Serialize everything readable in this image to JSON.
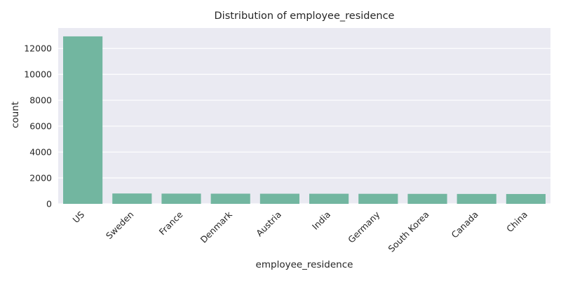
{
  "chart_data": {
    "type": "bar",
    "title": "Distribution of employee_residence",
    "xlabel": "employee_residence",
    "ylabel": "count",
    "categories": [
      "US",
      "Sweden",
      "France",
      "Denmark",
      "Austria",
      "India",
      "Germany",
      "South Korea",
      "Canada",
      "China"
    ],
    "values": [
      12930,
      800,
      790,
      785,
      782,
      780,
      775,
      770,
      765,
      760
    ],
    "ylim": [
      0,
      13575
    ],
    "yticks": [
      0,
      2000,
      4000,
      6000,
      8000,
      10000,
      12000
    ],
    "grid": true,
    "bar_color": "#72b6a0",
    "background_color": "#eaeaf2",
    "grid_color": "#ffffff"
  }
}
